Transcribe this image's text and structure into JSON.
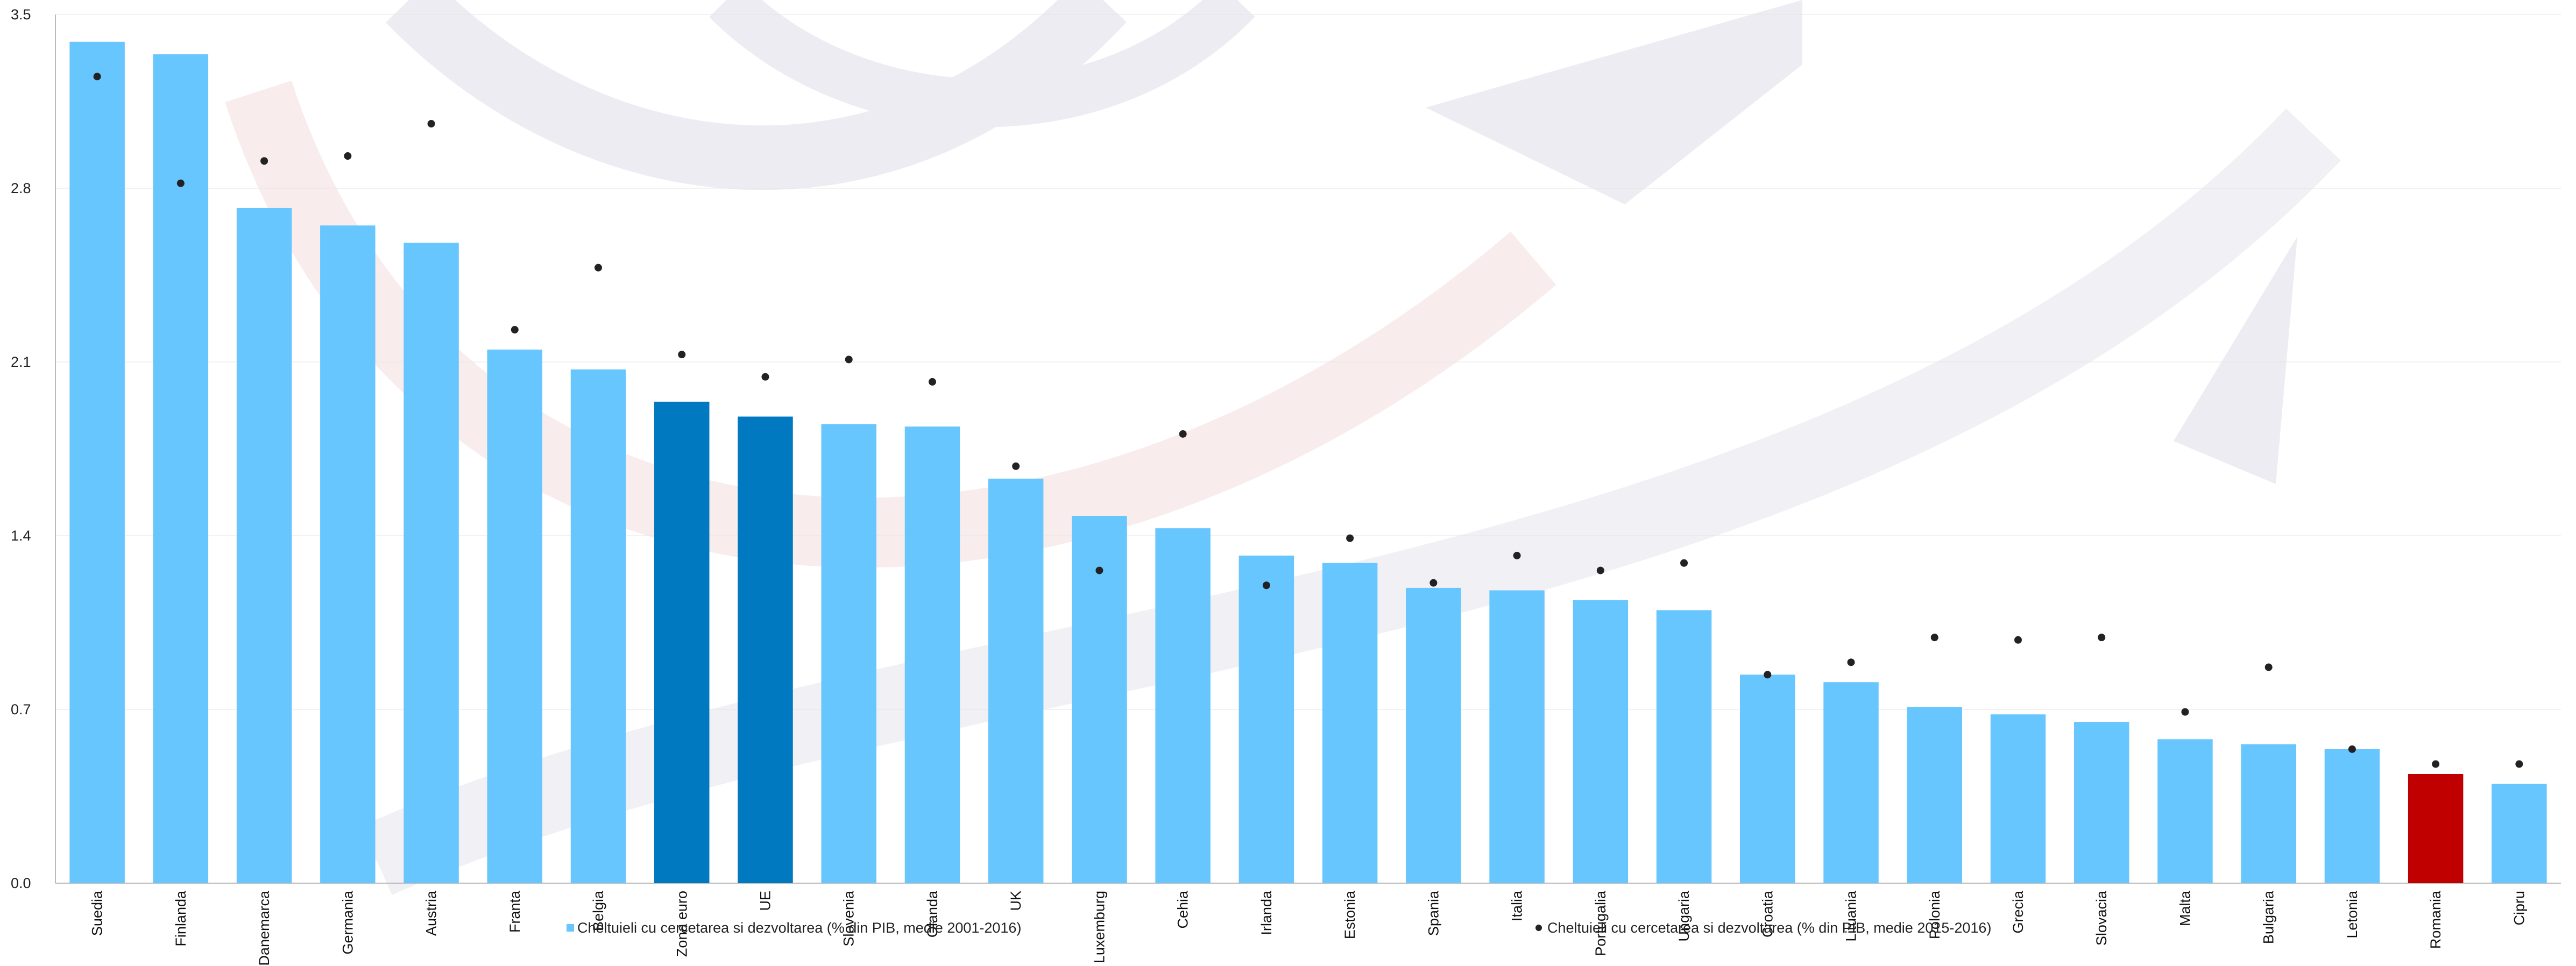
{
  "chart_data": {
    "type": "bar",
    "categories": [
      "Suedia",
      "Finlanda",
      "Danemarca",
      "Germania",
      "Austria",
      "Franta",
      "Belgia",
      "Zona euro",
      "UE",
      "Slovenia",
      "Olanda",
      "UK",
      "Luxemburg",
      "Cehia",
      "Irlanda",
      "Estonia",
      "Spania",
      "Italia",
      "Portugalia",
      "Ungaria",
      "Croatia",
      "Lituania",
      "Polonia",
      "Grecia",
      "Slovacia",
      "Malta",
      "Bulgaria",
      "Letonia",
      "Romania",
      "Cipru"
    ],
    "series": [
      {
        "name": "Cheltuieli cu cercetarea si dezvoltarea (% din PIB, medie 2001-2016)",
        "kind": "bar",
        "values": [
          3.39,
          3.34,
          2.72,
          2.65,
          2.58,
          2.15,
          2.07,
          1.94,
          1.88,
          1.85,
          1.84,
          1.63,
          1.48,
          1.43,
          1.32,
          1.29,
          1.19,
          1.18,
          1.14,
          1.1,
          0.84,
          0.81,
          0.71,
          0.68,
          0.65,
          0.58,
          0.56,
          0.54,
          0.44,
          0.4
        ],
        "colors": [
          "#66c6fd",
          "#66c6fd",
          "#66c6fd",
          "#66c6fd",
          "#66c6fd",
          "#66c6fd",
          "#66c6fd",
          "#0179c0",
          "#0179c0",
          "#66c6fd",
          "#66c6fd",
          "#66c6fd",
          "#66c6fd",
          "#66c6fd",
          "#66c6fd",
          "#66c6fd",
          "#66c6fd",
          "#66c6fd",
          "#66c6fd",
          "#66c6fd",
          "#66c6fd",
          "#66c6fd",
          "#66c6fd",
          "#66c6fd",
          "#66c6fd",
          "#66c6fd",
          "#66c6fd",
          "#66c6fd",
          "#c00000",
          "#66c6fd"
        ]
      },
      {
        "name": "Cheltuieli cu cercetarea si dezvoltarea (% din PIB, medie 2015-2016)",
        "kind": "scatter",
        "color": "#222222",
        "values": [
          3.25,
          2.82,
          2.91,
          2.93,
          3.06,
          2.23,
          2.48,
          2.13,
          2.04,
          2.11,
          2.02,
          1.68,
          1.26,
          1.81,
          1.2,
          1.39,
          1.21,
          1.32,
          1.26,
          1.29,
          0.84,
          0.89,
          0.99,
          0.98,
          0.99,
          0.69,
          0.87,
          0.54,
          0.48,
          0.48
        ]
      }
    ],
    "ylim": [
      0,
      3.5
    ],
    "yticks": [
      "0.0",
      "0.7",
      "1.4",
      "2.1",
      "2.8",
      "3.5"
    ],
    "grid": true,
    "legend_position": "bottom"
  }
}
